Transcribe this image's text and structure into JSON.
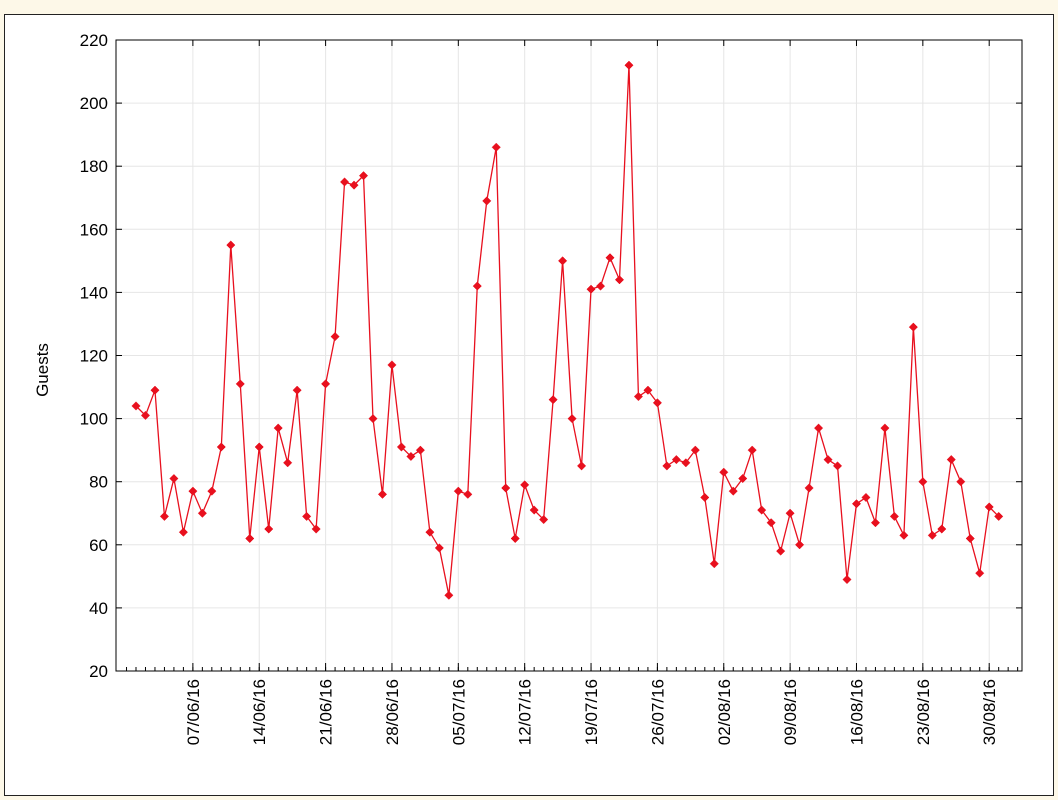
{
  "chart_data": {
    "type": "line",
    "title": "",
    "xlabel": "",
    "ylabel": "Guests",
    "ylim": [
      20,
      220
    ],
    "yticks": [
      20,
      40,
      60,
      80,
      100,
      120,
      140,
      160,
      180,
      200,
      220
    ],
    "grid": true,
    "legend": "none",
    "series_color": "#e8101e",
    "xticks": [
      {
        "date": "07/06/16",
        "label": "07/06/16"
      },
      {
        "date": "14/06/16",
        "label": "14/06/16"
      },
      {
        "date": "21/06/16",
        "label": "21/06/16"
      },
      {
        "date": "28/06/16",
        "label": "28/06/16"
      },
      {
        "date": "05/07/16",
        "label": "05/07/16"
      },
      {
        "date": "12/07/16",
        "label": "12/07/16"
      },
      {
        "date": "19/07/16",
        "label": "19/07/16"
      },
      {
        "date": "26/07/16",
        "label": "26/07/16"
      },
      {
        "date": "02/08/16",
        "label": "02/08/16"
      },
      {
        "date": "09/08/16",
        "label": "09/08/16"
      },
      {
        "date": "16/08/16",
        "label": "16/08/16"
      },
      {
        "date": "23/08/16",
        "label": "23/08/16"
      },
      {
        "date": "30/08/16",
        "label": "30/08/16"
      }
    ],
    "series": [
      {
        "x": [
          "01/06/16",
          "02/06/16",
          "03/06/16",
          "04/06/16",
          "05/06/16",
          "06/06/16",
          "07/06/16",
          "08/06/16",
          "09/06/16",
          "10/06/16",
          "11/06/16",
          "12/06/16",
          "13/06/16",
          "14/06/16",
          "15/06/16",
          "16/06/16",
          "17/06/16",
          "18/06/16",
          "19/06/16",
          "20/06/16",
          "21/06/16",
          "22/06/16",
          "23/06/16",
          "24/06/16",
          "25/06/16",
          "26/06/16",
          "27/06/16",
          "28/06/16",
          "29/06/16",
          "30/06/16",
          "01/07/16",
          "02/07/16",
          "03/07/16",
          "04/07/16",
          "05/07/16",
          "06/07/16",
          "07/07/16",
          "08/07/16",
          "09/07/16",
          "10/07/16",
          "11/07/16",
          "12/07/16",
          "13/07/16",
          "14/07/16",
          "15/07/16",
          "16/07/16",
          "17/07/16",
          "18/07/16",
          "19/07/16",
          "20/07/16",
          "21/07/16",
          "22/07/16",
          "23/07/16",
          "24/07/16",
          "25/07/16",
          "26/07/16",
          "27/07/16",
          "28/07/16",
          "29/07/16",
          "30/07/16",
          "31/07/16",
          "01/08/16",
          "02/08/16",
          "03/08/16",
          "04/08/16",
          "05/08/16",
          "06/08/16",
          "07/08/16",
          "08/08/16",
          "09/08/16",
          "10/08/16",
          "11/08/16",
          "12/08/16",
          "13/08/16",
          "14/08/16",
          "15/08/16",
          "16/08/16",
          "17/08/16",
          "18/08/16",
          "19/08/16",
          "20/08/16",
          "21/08/16",
          "22/08/16",
          "23/08/16",
          "24/08/16",
          "25/08/16",
          "26/08/16",
          "27/08/16",
          "28/08/16",
          "29/08/16",
          "30/08/16",
          "31/08/16"
        ],
        "values": [
          104,
          101,
          109,
          69,
          81,
          64,
          77,
          70,
          77,
          91,
          155,
          111,
          62,
          91,
          65,
          97,
          86,
          109,
          69,
          65,
          111,
          126,
          175,
          174,
          177,
          100,
          76,
          117,
          91,
          88,
          90,
          64,
          59,
          44,
          77,
          76,
          142,
          169,
          186,
          78,
          62,
          79,
          71,
          68,
          106,
          150,
          100,
          85,
          141,
          142,
          151,
          144,
          212,
          107,
          109,
          105,
          85,
          87,
          86,
          90,
          75,
          54,
          83,
          77,
          81,
          90,
          71,
          67,
          58,
          70,
          60,
          78,
          97,
          87,
          85,
          49,
          73,
          75,
          67,
          97,
          69,
          63,
          129,
          80,
          63,
          65,
          87,
          80,
          62,
          51,
          72,
          69
        ]
      }
    ]
  }
}
